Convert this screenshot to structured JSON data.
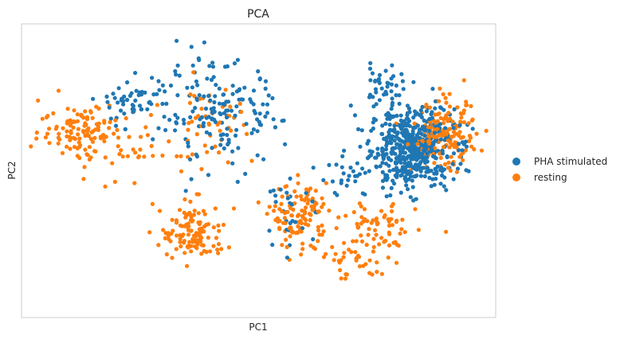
{
  "chart_data": {
    "type": "scatter",
    "title": "PCA",
    "xlabel": "PC1",
    "ylabel": "PC2",
    "xlim": [
      0,
      100
    ],
    "ylim": [
      0,
      100
    ],
    "grid": false,
    "ticks": false,
    "legend_placement": "right",
    "series": [
      {
        "name": "PHA stimulated",
        "color": "#1f77b4",
        "clusters": [
          {
            "cx": 83,
            "cy": 58,
            "sx": 4.5,
            "sy": 7,
            "n": 520
          },
          {
            "cx": 42,
            "cy": 70,
            "sx": 6.5,
            "sy": 9,
            "n": 160
          },
          {
            "cx": 23,
            "cy": 74,
            "sx": 4,
            "sy": 5,
            "n": 55
          },
          {
            "cx": 57,
            "cy": 36,
            "sx": 2.5,
            "sy": 5,
            "n": 30
          },
          {
            "cx": 69,
            "cy": 48,
            "sx": 3,
            "sy": 4,
            "n": 25
          },
          {
            "cx": 77,
            "cy": 80,
            "sx": 3,
            "sy": 4,
            "n": 40
          }
        ]
      },
      {
        "name": "resting",
        "color": "#ff7f0e",
        "clusters": [
          {
            "cx": 12,
            "cy": 64,
            "sx": 4.5,
            "sy": 5,
            "n": 110
          },
          {
            "cx": 36,
            "cy": 28,
            "sx": 3.5,
            "sy": 5,
            "n": 120
          },
          {
            "cx": 59,
            "cy": 34,
            "sx": 3,
            "sy": 5.5,
            "n": 120
          },
          {
            "cx": 90,
            "cy": 62,
            "sx": 3.5,
            "sy": 6,
            "n": 170
          },
          {
            "cx": 76,
            "cy": 28,
            "sx": 4,
            "sy": 6,
            "n": 70
          },
          {
            "cx": 39,
            "cy": 68,
            "sx": 4,
            "sy": 7,
            "n": 45
          },
          {
            "cx": 70,
            "cy": 18,
            "sx": 3.5,
            "sy": 3,
            "n": 30
          },
          {
            "cx": 26,
            "cy": 58,
            "sx": 8,
            "sy": 9,
            "n": 40
          }
        ]
      }
    ]
  }
}
